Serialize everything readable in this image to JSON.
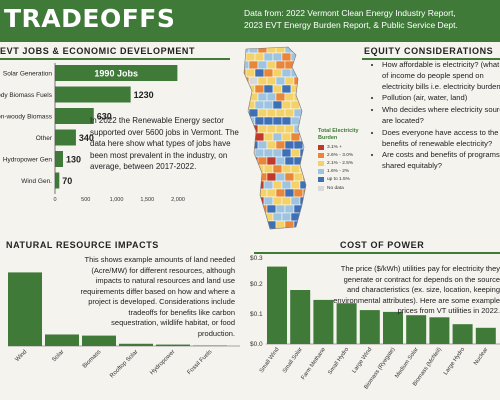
{
  "header": {
    "title": "TRADEOFFS",
    "source_line1": "Data from:  2022 Vermont Clean Energy Industry Report,",
    "source_line2": "2023 EVT Energy Burden Report, & Public Service Dept."
  },
  "jobs": {
    "heading": "EVT JOBS & ECONOMIC DEVELOPMENT",
    "paragraph": "In 2022 the Renewable Energy sector supported over 5600 jobs in Vermont. The data here show what types of jobs have been most prevalent in the industry, on average, between 2017-2022."
  },
  "equity": {
    "heading": "EQUITY CONSIDERATIONS",
    "bullets": [
      "How affordable is electricity? (what % of income do people spend on electricity bills i.e. electricity burden)",
      "Pollution (air, water, land)",
      "Who decides where electricity sources are located?",
      "Does everyone have access to the benefits of renewable electricity?",
      "Are costs and benefits of programs shared equitably?"
    ]
  },
  "map": {
    "legend_title_1": "Total Electricity",
    "legend_title_2": "Burden",
    "legend": [
      {
        "label": "3.1% +",
        "color": "#c0392b"
      },
      {
        "label": "2.6% - 3.0%",
        "color": "#e8863a"
      },
      {
        "label": "2.1% - 2.5%",
        "color": "#f3d26a"
      },
      {
        "label": "1.6% - 2%",
        "color": "#9fc4e0"
      },
      {
        "label": "up to 1.5%",
        "color": "#3f6fb5"
      },
      {
        "label": "No data",
        "color": "#d9d9d9"
      }
    ]
  },
  "resources": {
    "heading": "NATURAL RESOURCE IMPACTS",
    "paragraph": "This shows example amounts of land needed (Acre/MW) for different resources, although impacts to natural resources and land use requirements differ based on how and where a project is developed. Considerations include tradeoffs for benefits like carbon sequestration, wildlife habitat, or food production."
  },
  "power": {
    "heading": "COST OF POWER",
    "paragraph": "The price ($/kWh) utilities pay for electricity they generate or contract for depends on the source and characteristics (ex. size, location, keeping environmental attributes). Here are some example prices from VT utilities in 2022."
  },
  "chart_data": [
    {
      "type": "bar",
      "orientation": "horizontal",
      "categories": [
        "Solar Generation",
        "Woody Biomass Fuels",
        "Non-woody Biomass",
        "Other",
        "Hydropower Gen",
        "Wind Gen."
      ],
      "values": [
        1990,
        1230,
        630,
        340,
        130,
        70
      ],
      "data_labels": [
        "1990 Jobs",
        "1230",
        "630",
        "340",
        "130",
        "70"
      ],
      "xticks": [
        "0",
        "500",
        "1,000",
        "1,500",
        "2,000"
      ],
      "xlim": [
        0,
        2000
      ],
      "color": "#3f7a39"
    },
    {
      "type": "bar",
      "categories": [
        "Wind",
        "Solar",
        "Biomass",
        "Rooftop Solar",
        "Hydropower",
        "Fossil Fuels"
      ],
      "values": [
        46,
        7.2,
        6.5,
        1.4,
        0.9,
        0.3
      ],
      "ylim": [
        0,
        60
      ],
      "color": "#3f7a39"
    },
    {
      "type": "bar",
      "categories": [
        "Small Wind",
        "Small Solar",
        "Farm Methane",
        "Small Hydro",
        "Large Wind",
        "Biomass (Ryegate)",
        "Medium Solar",
        "Biomass (McNeil)",
        "Large Hydro",
        "Nuclear"
      ],
      "values": [
        0.258,
        0.18,
        0.147,
        0.136,
        0.113,
        0.107,
        0.096,
        0.089,
        0.066,
        0.054
      ],
      "yticks": [
        "$0.3",
        "$0.2",
        "$0.1",
        "$0.0"
      ],
      "ylim": [
        0,
        0.3
      ],
      "color": "#3f7a39"
    }
  ]
}
